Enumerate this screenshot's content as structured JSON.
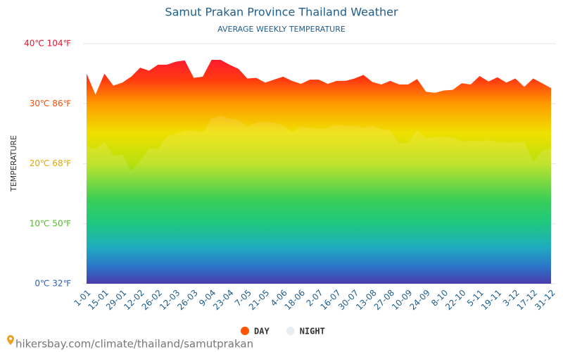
{
  "chart_data": {
    "type": "area",
    "title": "Samut Prakan Province Thailand Weather",
    "subtitle": "AVERAGE WEEKLY TEMPERATURE",
    "y_label": "TEMPERATURE",
    "source": "hikersbay.com/climate/thailand/samutprakan",
    "categories": [
      "1-01",
      null,
      "15-01",
      null,
      "29-01",
      null,
      "12-02",
      null,
      "26-02",
      null,
      "12-03",
      null,
      "26-03",
      null,
      "9-04",
      null,
      "23-04",
      null,
      "7-05",
      null,
      "21-05",
      null,
      "4-06",
      null,
      "18-06",
      null,
      "2-07",
      null,
      "16-07",
      null,
      "30-07",
      null,
      "13-08",
      null,
      "27-08",
      null,
      "10-09",
      null,
      "24-09",
      null,
      "8-10",
      null,
      "22-10",
      null,
      "5-11",
      null,
      "19-11",
      null,
      "3-12",
      null,
      "17-12",
      null,
      "31-12"
    ],
    "series": [
      {
        "name": "DAY",
        "color": "#ff5500",
        "values": [
          35,
          31.5,
          35,
          33,
          33.5,
          34.5,
          36,
          35.5,
          36.5,
          36.5,
          37,
          37.2,
          34.3,
          34.5,
          37.3,
          37.3,
          36.5,
          35.8,
          34.2,
          34.3,
          33.5,
          34,
          34.5,
          33.8,
          33.3,
          34,
          34,
          33.3,
          33.8,
          33.8,
          34.2,
          34.8,
          33.6,
          33.2,
          33.8,
          33.2,
          33.2,
          34.1,
          32,
          31.8,
          32.2,
          32.3,
          33.4,
          33.2,
          34.6,
          33.7,
          34.4,
          33.5,
          34.2,
          32.8,
          34.2,
          33.4,
          32.6
        ]
      },
      {
        "name": "NIGHT",
        "color": "#e8eef2",
        "values": [
          22.8,
          22.5,
          23.6,
          21.3,
          21.5,
          18.8,
          20.5,
          22.5,
          22.5,
          24.5,
          25,
          25.5,
          25.5,
          25.2,
          27.5,
          28,
          27.5,
          27.3,
          26.2,
          26.8,
          27,
          26.8,
          26.4,
          25.3,
          26.2,
          26,
          25.8,
          26,
          26.5,
          26.3,
          26.3,
          26,
          26.3,
          25.8,
          25.6,
          23.4,
          23.5,
          25.6,
          24.3,
          24.4,
          24.5,
          24.3,
          23.7,
          23.8,
          23.7,
          23.9,
          23.6,
          23.5,
          23.5,
          23.6,
          20.3,
          22.2,
          22.5
        ]
      }
    ],
    "ylim": [
      0,
      40
    ],
    "yticks": [
      {
        "value": 0,
        "label": "0℃ 32℉"
      },
      {
        "value": 10,
        "label": "10℃ 50℉"
      },
      {
        "value": 20,
        "label": "20℃ 68℉"
      },
      {
        "value": 30,
        "label": "30℃ 86℉"
      },
      {
        "value": 40,
        "label": "40℃ 104℉"
      }
    ],
    "ytick_colors": [
      "#2a5fc0",
      "#4cbf20",
      "#e0a800",
      "#ff4a00",
      "#e8102a"
    ],
    "grid": true,
    "legend": "bottom"
  }
}
